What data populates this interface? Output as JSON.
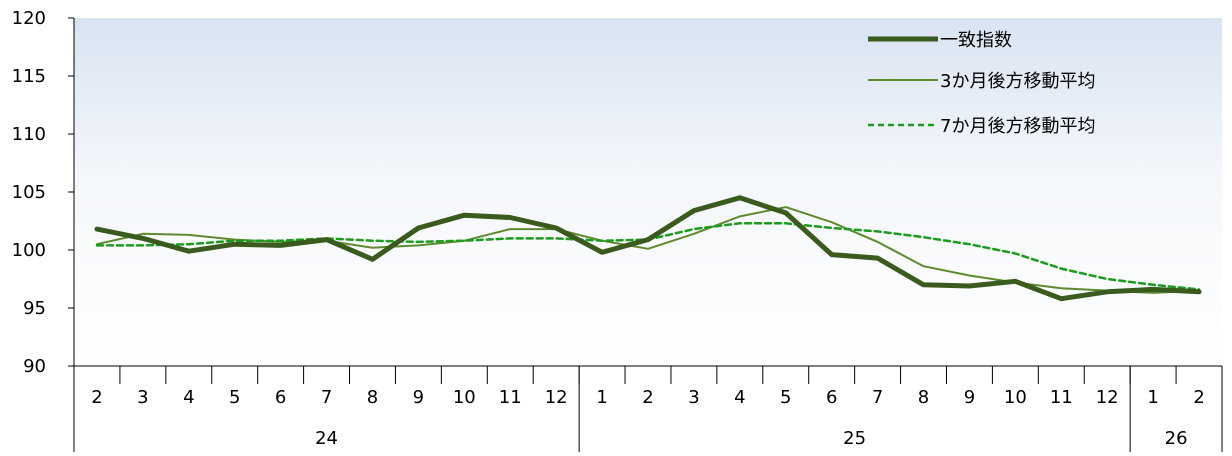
{
  "chart_data": {
    "type": "line",
    "title": "",
    "xlabel": "",
    "ylabel": "",
    "ylim": [
      90,
      120
    ],
    "yticks": [
      90,
      95,
      100,
      105,
      110,
      115,
      120
    ],
    "grid": false,
    "legend_position": "top-right",
    "categories": [
      "2",
      "3",
      "4",
      "5",
      "6",
      "7",
      "8",
      "9",
      "10",
      "11",
      "12",
      "1",
      "2",
      "3",
      "4",
      "5",
      "6",
      "7",
      "8",
      "9",
      "10",
      "11",
      "12",
      "1",
      "2"
    ],
    "year_groups": [
      {
        "label": "24",
        "count": 11
      },
      {
        "label": "25",
        "count": 12
      },
      {
        "label": "26",
        "count": 2
      }
    ],
    "series": [
      {
        "name": "一致指数",
        "color": "#3a5a1e",
        "style": "thick",
        "values": [
          101.8,
          101.0,
          99.9,
          100.5,
          100.4,
          100.9,
          99.2,
          101.9,
          103.0,
          102.8,
          101.9,
          99.8,
          100.9,
          103.4,
          104.5,
          103.2,
          99.6,
          99.3,
          97.0,
          96.9,
          97.3,
          95.8,
          96.4,
          96.6,
          96.4
        ]
      },
      {
        "name": "3か月後方移動平均",
        "color": "#5e8a2e",
        "style": "thin",
        "values": [
          100.5,
          101.4,
          101.3,
          100.9,
          100.7,
          100.8,
          100.2,
          100.4,
          100.8,
          101.8,
          101.8,
          100.8,
          100.1,
          101.4,
          102.9,
          103.7,
          102.4,
          100.7,
          98.6,
          97.8,
          97.2,
          96.7,
          96.5,
          96.3,
          96.5
        ]
      },
      {
        "name": "7か月後方移動平均",
        "color": "#1e9b1e",
        "style": "dashed",
        "values": [
          100.4,
          100.4,
          100.5,
          100.8,
          100.8,
          101.0,
          100.8,
          100.7,
          100.8,
          101.0,
          101.0,
          100.8,
          100.9,
          101.8,
          102.3,
          102.3,
          101.9,
          101.6,
          101.1,
          100.5,
          99.7,
          98.4,
          97.5,
          97.0,
          96.6
        ]
      }
    ]
  }
}
